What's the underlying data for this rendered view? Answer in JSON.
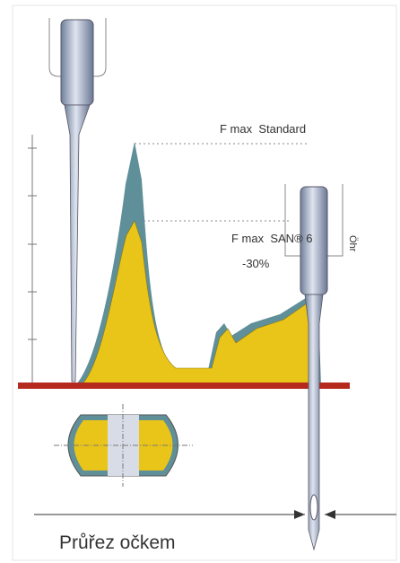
{
  "labels": {
    "f_max_standard": "F max  Standard",
    "f_max_san": "F max  SAN® 6",
    "reduction": "-30%",
    "eye_label": "Öhr"
  },
  "caption": "Průřez očkem"
}
